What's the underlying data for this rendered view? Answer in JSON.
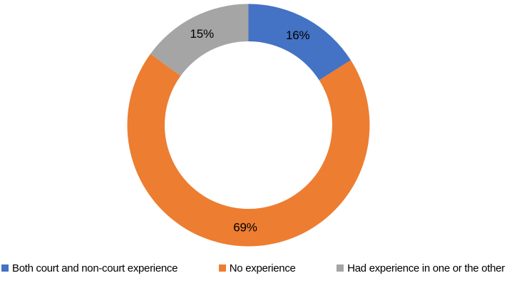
{
  "chart_data": {
    "type": "pie",
    "subtype": "donut",
    "title": "",
    "start_angle_deg": 0,
    "direction": "clockwise",
    "donut_hole_ratio": 0.69,
    "legend_position": "bottom",
    "background_color": "#ffffff",
    "data_label_color": "#000000",
    "categories": [
      "Both court and non-court experience",
      "No experience",
      "Had experience in one or the other"
    ],
    "values": [
      16,
      69,
      15
    ],
    "slices": [
      {
        "label": "Both court and non-court experience",
        "value": 16,
        "display": "16%",
        "color": "#4472C4"
      },
      {
        "label": "No experience",
        "value": 69,
        "display": "69%",
        "color": "#ED7D31"
      },
      {
        "label": "Had experience in one or the other",
        "value": 15,
        "display": "15%",
        "color": "#A5A5A5"
      }
    ]
  }
}
